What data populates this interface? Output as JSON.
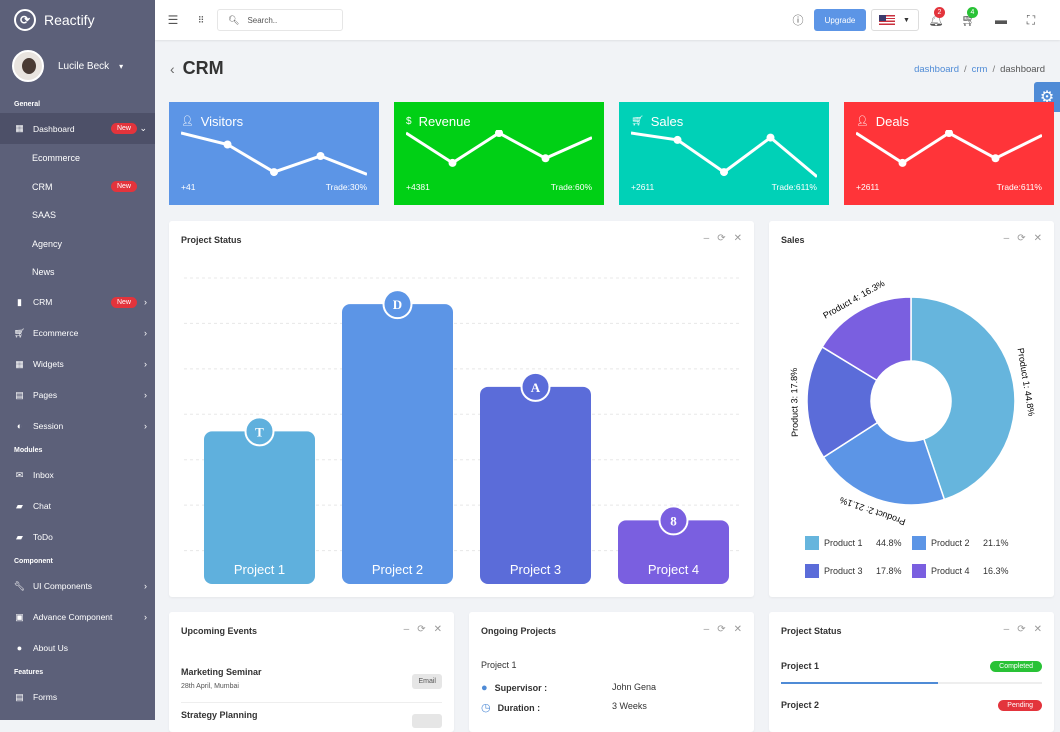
{
  "app": {
    "name": "Reactify",
    "logo": "clock-icon"
  },
  "user": {
    "name": "Lucile Beck"
  },
  "sidebar": {
    "general": "General",
    "dashboard": "Dashboard",
    "dashboard_badge": "New",
    "sub": [
      "Ecommerce",
      "CRM",
      "SAAS",
      "Agency",
      "News"
    ],
    "crm_sub_badge": "New",
    "crm": "CRM",
    "crm_badge": "New",
    "ecommerce": "Ecommerce",
    "widgets": "Widgets",
    "pages": "Pages",
    "session": "Session",
    "modules": "Modules",
    "inbox": "Inbox",
    "chat": "Chat",
    "todo": "ToDo",
    "component": "Component",
    "ui": "UI Components",
    "advance": "Advance Component",
    "about": "About Us",
    "features": "Features",
    "forms": "Forms"
  },
  "topbar": {
    "search_placeholder": "Search..",
    "upgrade": "Upgrade",
    "notif_count": "2",
    "cart_count": "4",
    "notif_color": "#e3343c",
    "cart_color": "#29c236"
  },
  "page": {
    "title": "CRM",
    "crumb1": "dashboard",
    "crumb2": "crm",
    "crumb3": "dashboard"
  },
  "stats": [
    {
      "title": "Visitors",
      "icon": "user-plus-icon",
      "left": "+41",
      "right": "Trade:30%",
      "color": "#5c95e6"
    },
    {
      "title": "Revenue",
      "icon": "dollar-icon",
      "left": "+4381",
      "right": "Trade:60%",
      "color": "#00d015"
    },
    {
      "title": "Sales",
      "icon": "cart-icon",
      "left": "+2611",
      "right": "Trade:611%",
      "color": "#00d1b7"
    },
    {
      "title": "Deals",
      "icon": "user-plus-icon",
      "left": "+2611",
      "right": "Trade:611%",
      "color": "#ff3439"
    }
  ],
  "project_status": {
    "title": "Project Status"
  },
  "chart_data": [
    {
      "type": "bar",
      "title": "Project Status",
      "categories": [
        "Project 1",
        "Project 2",
        "Project 3",
        "Project 4"
      ],
      "values": [
        48,
        88,
        62,
        20
      ],
      "ylim": [
        0,
        100
      ],
      "markers": [
        "T",
        "D",
        "A",
        "8"
      ],
      "colors": [
        "#5fb0dd",
        "#5c95e6",
        "#5b6cd9",
        "#7a5fe0"
      ]
    },
    {
      "type": "pie",
      "title": "Sales",
      "labels": [
        "Product 1",
        "Product 2",
        "Product 3",
        "Product 4"
      ],
      "values": [
        44.8,
        21.1,
        17.8,
        16.3
      ],
      "labels_text": [
        "Product 1: 44.8%",
        "Product 2: 21.1%",
        "Product 3: 17.8%",
        "Product 4: 16.3%"
      ],
      "colors": [
        "#66b5dd",
        "#5c95e6",
        "#5b6cd9",
        "#7a5fe0"
      ]
    }
  ],
  "sales": {
    "title": "Sales",
    "legend": [
      {
        "name": "Product 1",
        "value": "44.8%"
      },
      {
        "name": "Product 2",
        "value": "21.1%"
      },
      {
        "name": "Product 3",
        "value": "17.8%"
      },
      {
        "name": "Product 4",
        "value": "16.3%"
      }
    ]
  },
  "events": {
    "title": "Upcoming Events",
    "items": [
      {
        "name": "Marketing Seminar",
        "sub": "28th April, Mumbai",
        "tag": "Email"
      },
      {
        "name": "Strategy Planning",
        "sub": "",
        "tag": ""
      }
    ]
  },
  "ongoing": {
    "title": "Ongoing Projects",
    "project": "Project 1",
    "sup_label": "Supervisor :",
    "sup": "John Gena",
    "dur_label": "Duration :",
    "dur": "3 Weeks"
  },
  "pstatus": {
    "title": "Project Status",
    "items": [
      {
        "name": "Project 1",
        "status": "Completed",
        "color": "#29c236",
        "progress": 0.6
      },
      {
        "name": "Project 2",
        "status": "Pending",
        "color": "#e3343c"
      }
    ]
  }
}
